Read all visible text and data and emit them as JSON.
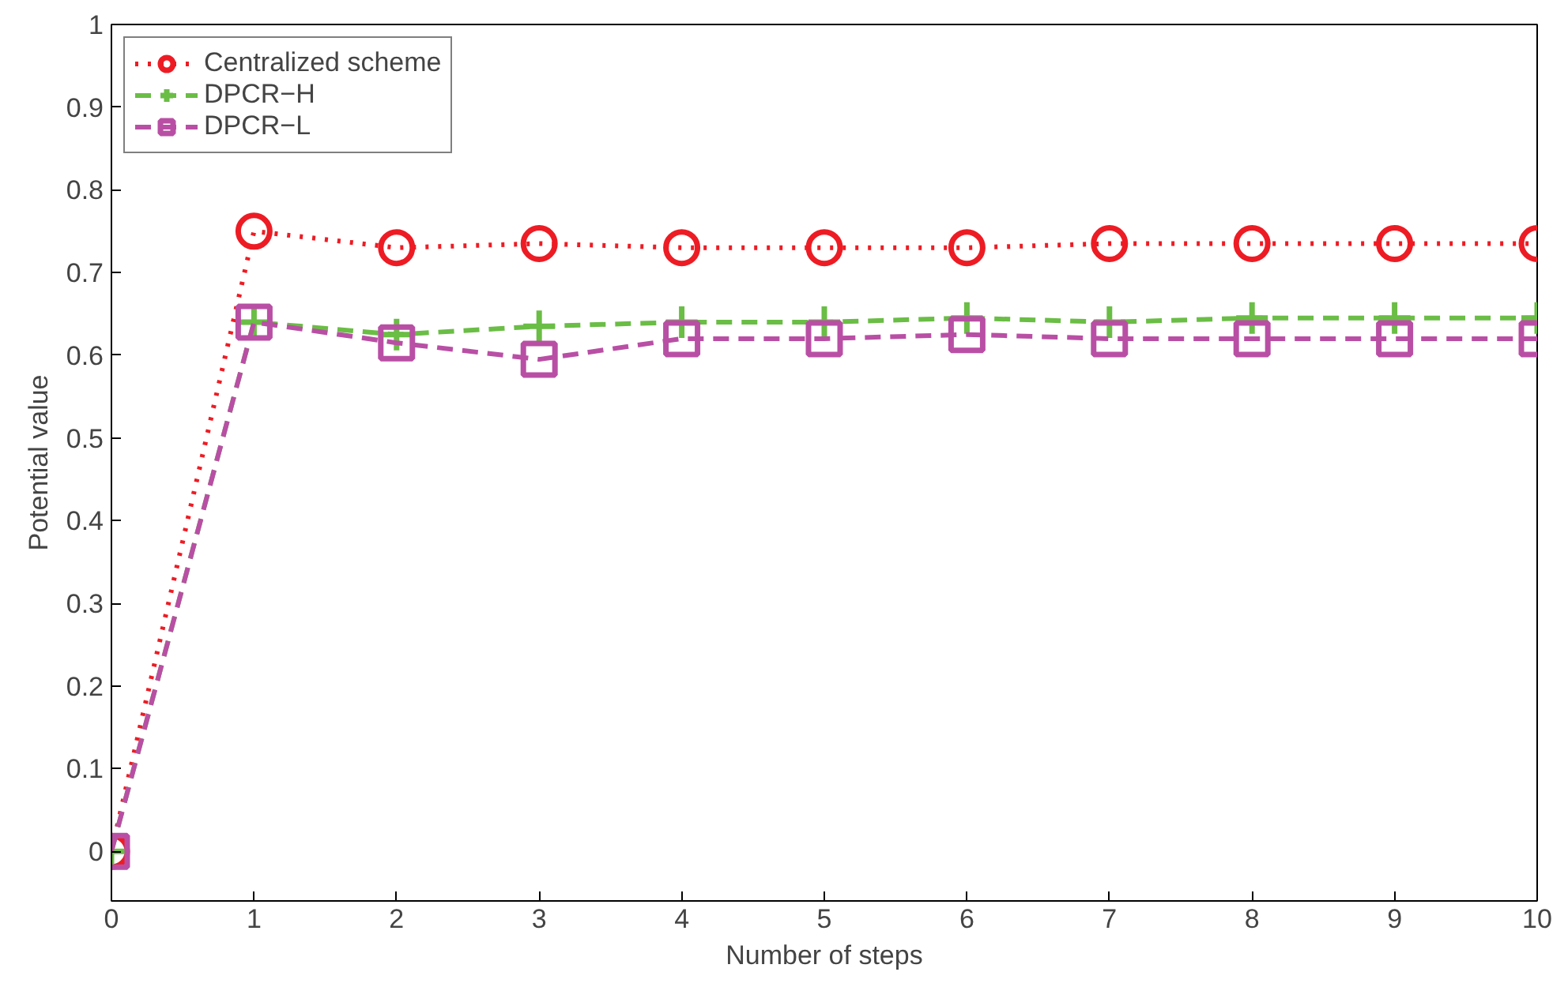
{
  "chart_data": {
    "type": "line",
    "xlabel": "Number of steps",
    "ylabel": "Potential value",
    "x": [
      0,
      1,
      2,
      3,
      4,
      5,
      6,
      7,
      8,
      9,
      10
    ],
    "xlim": [
      0,
      10
    ],
    "xticks": [
      0,
      1,
      2,
      3,
      4,
      5,
      6,
      7,
      8,
      9,
      10
    ],
    "ylim": [
      -0.06,
      1
    ],
    "yticks": [
      0,
      0.1,
      0.2,
      0.3,
      0.4,
      0.5,
      0.6,
      0.7,
      0.8,
      0.9,
      1
    ],
    "grid": false,
    "legend": "top left",
    "series": [
      {
        "name": "Centralized scheme",
        "color": "#ed1c24",
        "marker": "circle",
        "line_style": "dotted",
        "values": [
          0,
          0.75,
          0.73,
          0.735,
          0.73,
          0.73,
          0.73,
          0.735,
          0.735,
          0.735,
          0.735
        ]
      },
      {
        "name": "DPCR−H",
        "color": "#6abd45",
        "marker": "cross",
        "line_style": "dashed",
        "values": [
          0,
          0.64,
          0.625,
          0.635,
          0.64,
          0.64,
          0.645,
          0.64,
          0.645,
          0.645,
          0.645
        ]
      },
      {
        "name": "DPCR−L",
        "color": "#b94fa5",
        "marker": "square",
        "line_style": "dashed",
        "values": [
          0,
          0.64,
          0.615,
          0.595,
          0.62,
          0.62,
          0.625,
          0.62,
          0.62,
          0.62,
          0.62
        ]
      }
    ]
  }
}
